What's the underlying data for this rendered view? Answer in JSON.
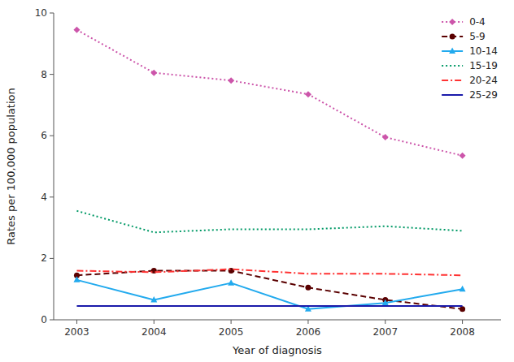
{
  "chart_data": {
    "type": "line",
    "xlabel": "Year of diagnosis",
    "ylabel": "Rates per 100,000 population",
    "x": [
      2003,
      2004,
      2005,
      2006,
      2007,
      2008
    ],
    "series": [
      {
        "name": "0-4",
        "color": "#cc55aa",
        "marker": "diamond",
        "line_style": "dotted",
        "values": [
          9.45,
          8.05,
          7.8,
          7.35,
          5.95,
          5.35
        ]
      },
      {
        "name": "5-9",
        "color": "#5a0000",
        "marker": "circle",
        "line_style": "dashed",
        "values": [
          1.45,
          1.6,
          1.6,
          1.05,
          0.65,
          0.35
        ]
      },
      {
        "name": "10-14",
        "color": "#22aaee",
        "marker": "triangle",
        "line_style": "solid",
        "values": [
          1.3,
          0.65,
          1.2,
          0.35,
          0.55,
          1.0
        ]
      },
      {
        "name": "15-19",
        "color": "#009966",
        "line_style": "dotted",
        "values": [
          3.55,
          2.85,
          2.95,
          2.95,
          3.05,
          2.9
        ]
      },
      {
        "name": "20-24",
        "color": "#ff3333",
        "line_style": "dashdot",
        "values": [
          1.6,
          1.55,
          1.65,
          1.5,
          1.5,
          1.45
        ]
      },
      {
        "name": "25-29",
        "color": "#1a1aaa",
        "line_style": "solid",
        "values": [
          0.45,
          0.45,
          0.45,
          0.45,
          0.45,
          0.45
        ]
      }
    ],
    "xlim": [
      2002.7,
      2008.5
    ],
    "xticks": [
      2003,
      2004,
      2005,
      2006,
      2007,
      2008
    ],
    "ylim": [
      0,
      10
    ],
    "yticks": [
      0,
      2,
      4,
      6,
      8,
      10
    ],
    "grid": false,
    "legend": "upper right"
  }
}
